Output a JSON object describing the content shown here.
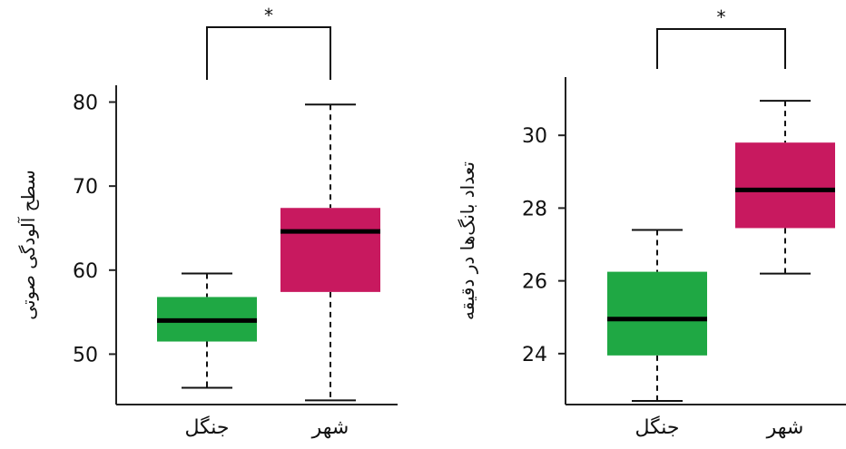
{
  "colors": {
    "forest": "#1fa844",
    "city": "#c8195f",
    "median": "#000000",
    "axis": "#222222"
  },
  "chart_data": [
    {
      "type": "box",
      "ylabel": "سطح آلودگی صوتی",
      "categories": [
        "جنگل",
        "شهر"
      ],
      "yticks": [
        50,
        60,
        70,
        80
      ],
      "ylim": [
        44,
        82
      ],
      "grid": false,
      "significance": "*",
      "series": [
        {
          "category": "جنگل",
          "color": "forest",
          "whisker_low": 46,
          "q1": 51.5,
          "median": 54,
          "q3": 56.8,
          "whisker_high": 59.6
        },
        {
          "category": "شهر",
          "color": "city",
          "whisker_low": 44.5,
          "q1": 57.4,
          "median": 64.6,
          "q3": 67.4,
          "whisker_high": 79.7
        }
      ]
    },
    {
      "type": "box",
      "ylabel": "تعداد بانگ‌ها در دقیقه",
      "categories": [
        "جنگل",
        "شهر"
      ],
      "yticks": [
        24,
        26,
        28,
        30
      ],
      "ylim": [
        22.6,
        31.6
      ],
      "grid": false,
      "significance": "*",
      "series": [
        {
          "category": "جنگل",
          "color": "forest",
          "whisker_low": 22.7,
          "q1": 23.95,
          "median": 24.95,
          "q3": 26.25,
          "whisker_high": 27.4
        },
        {
          "category": "شهر",
          "color": "city",
          "whisker_low": 26.2,
          "q1": 27.45,
          "median": 28.5,
          "q3": 29.8,
          "whisker_high": 30.95
        }
      ]
    }
  ]
}
